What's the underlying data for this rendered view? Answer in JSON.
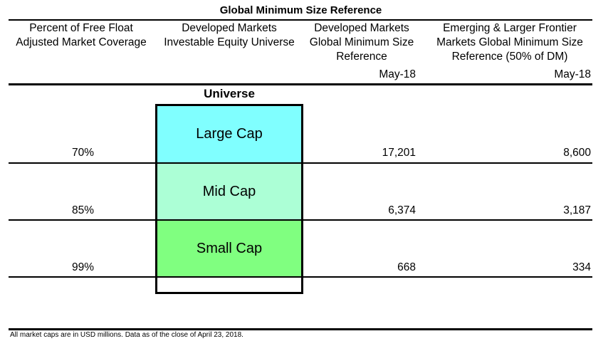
{
  "title": "Global Minimum Size Reference",
  "headers": {
    "col1": [
      "Percent of Free Float",
      "Adjusted Market Coverage"
    ],
    "col2": [
      "Developed Markets",
      "Investable Equity Universe"
    ],
    "col3": [
      "Developed Markets",
      "Global Minimum Size",
      "Reference"
    ],
    "col4": [
      "Emerging & Larger Frontier",
      "Markets Global Minimum Size",
      "Reference (50% of DM)"
    ]
  },
  "dates": {
    "dm": "May-18",
    "em": "May-18"
  },
  "universe_label": "Universe",
  "rows": [
    {
      "segment": "Large Cap",
      "coverage": "70%",
      "dm_min_size": "17,201",
      "em_min_size": "8,600",
      "color": "#80ffff"
    },
    {
      "segment": "Mid Cap",
      "coverage": "85%",
      "dm_min_size": "6,374",
      "em_min_size": "3,187",
      "color": "#acffd6"
    },
    {
      "segment": "Small Cap",
      "coverage": "99%",
      "dm_min_size": "668",
      "em_min_size": "334",
      "color": "#80ff80"
    }
  ],
  "footnote": "All market caps are in USD millions. Data as of the close of April 23, 2018."
}
